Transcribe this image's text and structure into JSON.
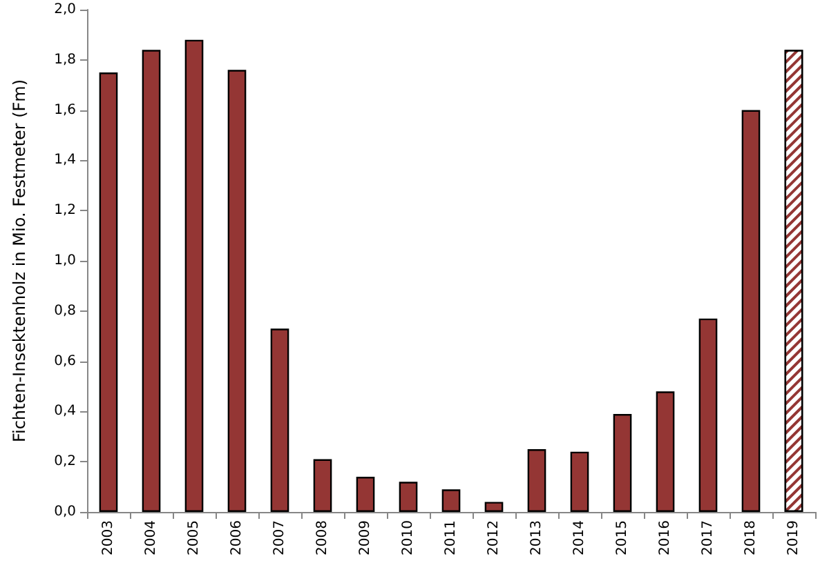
{
  "chart_data": {
    "type": "bar",
    "ylabel": "Fichten-Insektenholz in Mio. Festmeter (Fm)",
    "categories": [
      "2003",
      "2004",
      "2005",
      "2006",
      "2007",
      "2008",
      "2009",
      "2010",
      "2011",
      "2012",
      "2013",
      "2014",
      "2015",
      "2016",
      "2017",
      "2018",
      "2019"
    ],
    "series": [
      {
        "color": "#943634",
        "values": [
          1.75,
          1.84,
          1.88,
          1.76,
          0.73,
          0.21,
          0.14,
          0.12,
          0.09,
          0.04,
          0.25,
          0.24,
          0.39,
          0.48,
          0.77,
          1.6,
          null
        ]
      },
      {
        "color": "#943634",
        "values": [
          null,
          null,
          null,
          null,
          null,
          null,
          null,
          null,
          null,
          null,
          null,
          null,
          null,
          null,
          null,
          null,
          1.84
        ]
      }
    ],
    "ylim": [
      0,
      2
    ],
    "yticks": [
      {
        "value": 0,
        "label": "0,0"
      },
      {
        "value": 0.2,
        "label": "0,2"
      },
      {
        "value": 0.4,
        "label": "0,4"
      },
      {
        "value": 0.6,
        "label": "0,6"
      },
      {
        "value": 0.8,
        "label": "0,8"
      },
      {
        "value": 1,
        "label": "1,0"
      },
      {
        "value": 1.2,
        "label": "1,2"
      },
      {
        "value": 1.4,
        "label": "1,4"
      },
      {
        "value": 1.6,
        "label": "1,6"
      },
      {
        "value": 1.8,
        "label": "1,8"
      },
      {
        "value": 2,
        "label": "2,0"
      }
    ]
  }
}
